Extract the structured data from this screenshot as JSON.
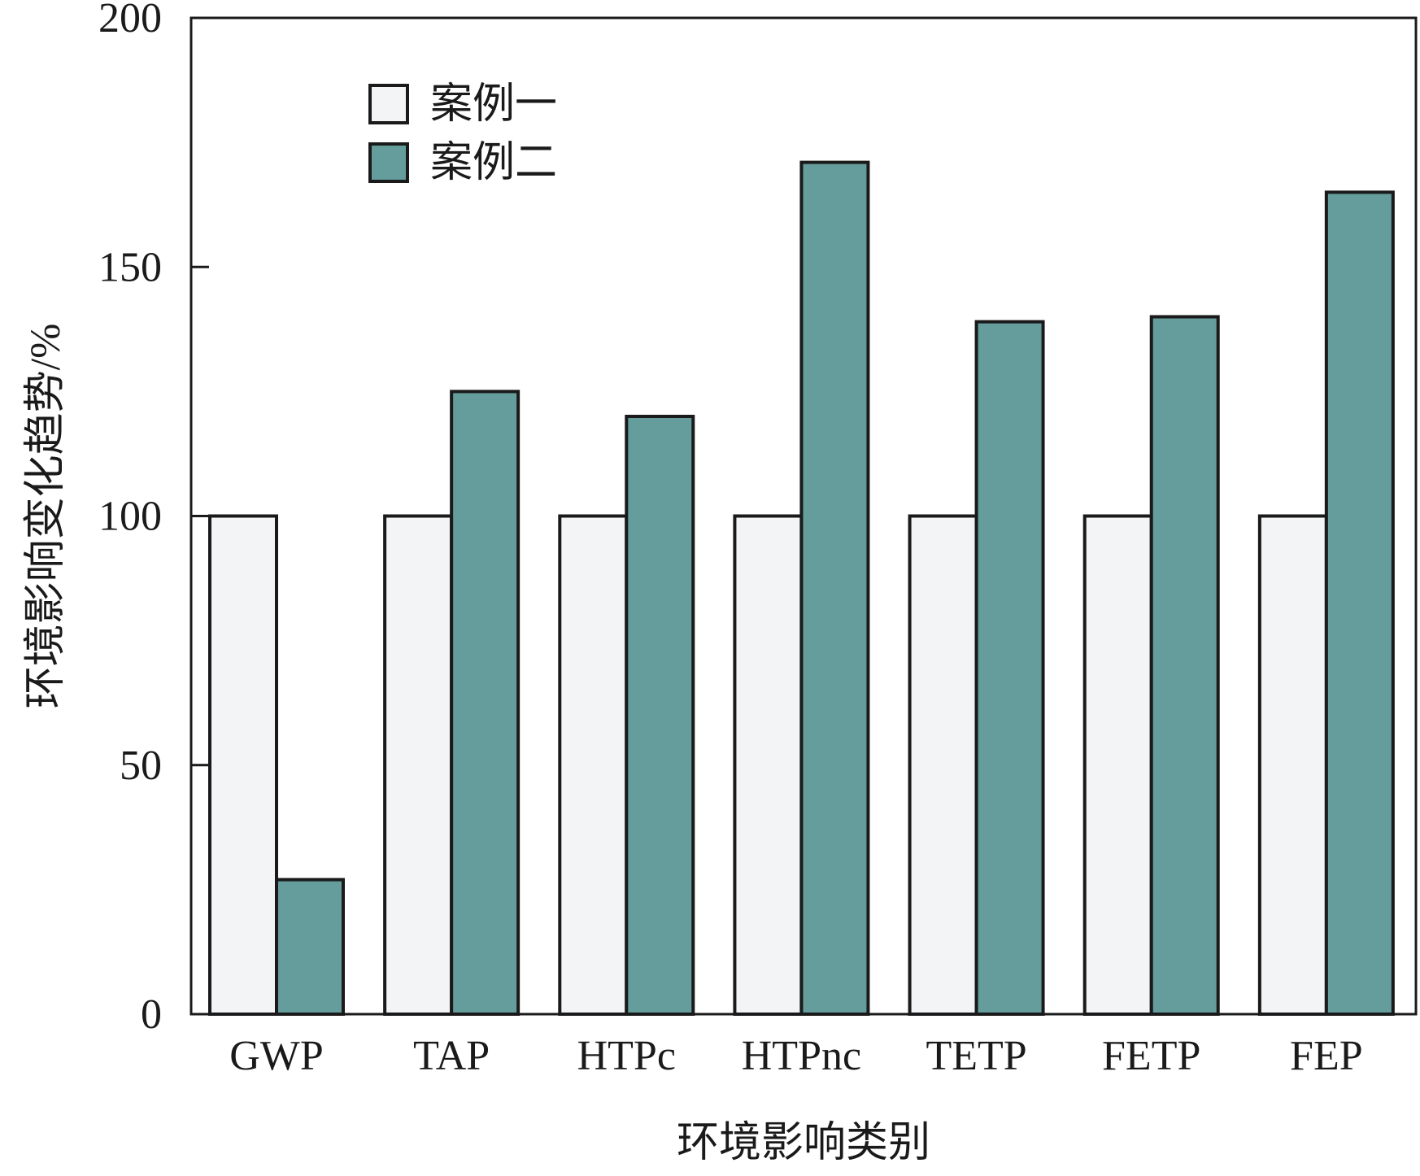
{
  "chart_data": {
    "type": "bar",
    "title": "",
    "xlabel": "环境影响类别",
    "ylabel": "环境影响变化趋势/%",
    "ylim": [
      0,
      200
    ],
    "yticks": [
      0,
      50,
      100,
      150,
      200
    ],
    "grid": false,
    "legend_position": "top-left",
    "categories": [
      "GWP",
      "TAP",
      "HTPc",
      "HTPnc",
      "TETP",
      "FETP",
      "FEP"
    ],
    "series": [
      {
        "name": "案例一",
        "color": "#F2F4F6",
        "values": [
          100,
          100,
          100,
          100,
          100,
          100,
          100
        ]
      },
      {
        "name": "案例二",
        "color": "#659C9C",
        "values": [
          27,
          125,
          120,
          171,
          139,
          140,
          165
        ]
      }
    ]
  }
}
